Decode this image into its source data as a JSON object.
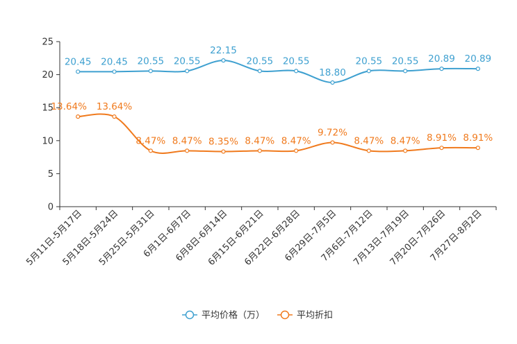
{
  "chart_data": {
    "type": "line",
    "categories": [
      "5月11日-5月17日",
      "5月18日-5月24日",
      "5月25日-5月31日",
      "6月1日-6月7日",
      "6月8日-6月14日",
      "6月15日-6月21日",
      "6月22日-6月28日",
      "6月29日-7月5日",
      "7月6日-7月12日",
      "7月13日-7月19日",
      "7月20日-7月26日",
      "7月27日-8月2日"
    ],
    "series": [
      {
        "name": "平均价格（万）",
        "color": "#3ea0d0",
        "values": [
          20.45,
          20.45,
          20.55,
          20.55,
          22.15,
          20.55,
          20.55,
          18.8,
          20.55,
          20.55,
          20.89,
          20.89
        ],
        "labels": [
          "20.45",
          "20.45",
          "20.55",
          "20.55",
          "22.15",
          "20.55",
          "20.55",
          "18.80",
          "20.55",
          "20.55",
          "20.89",
          "20.89"
        ]
      },
      {
        "name": "平均折扣",
        "color": "#f07a1d",
        "values": [
          13.64,
          13.64,
          8.47,
          8.47,
          8.35,
          8.47,
          8.47,
          9.72,
          8.47,
          8.47,
          8.91,
          8.91
        ],
        "labels": [
          "13.64%",
          "13.64%",
          "8.47%",
          "8.47%",
          "8.35%",
          "8.47%",
          "8.47%",
          "9.72%",
          "8.47%",
          "8.47%",
          "8.91%",
          "8.91%"
        ]
      }
    ],
    "ylim": [
      0,
      25
    ],
    "yticks": [
      "0",
      "5",
      "10",
      "15",
      "20",
      "25"
    ],
    "grid": false,
    "legend_position": "bottom-center"
  }
}
